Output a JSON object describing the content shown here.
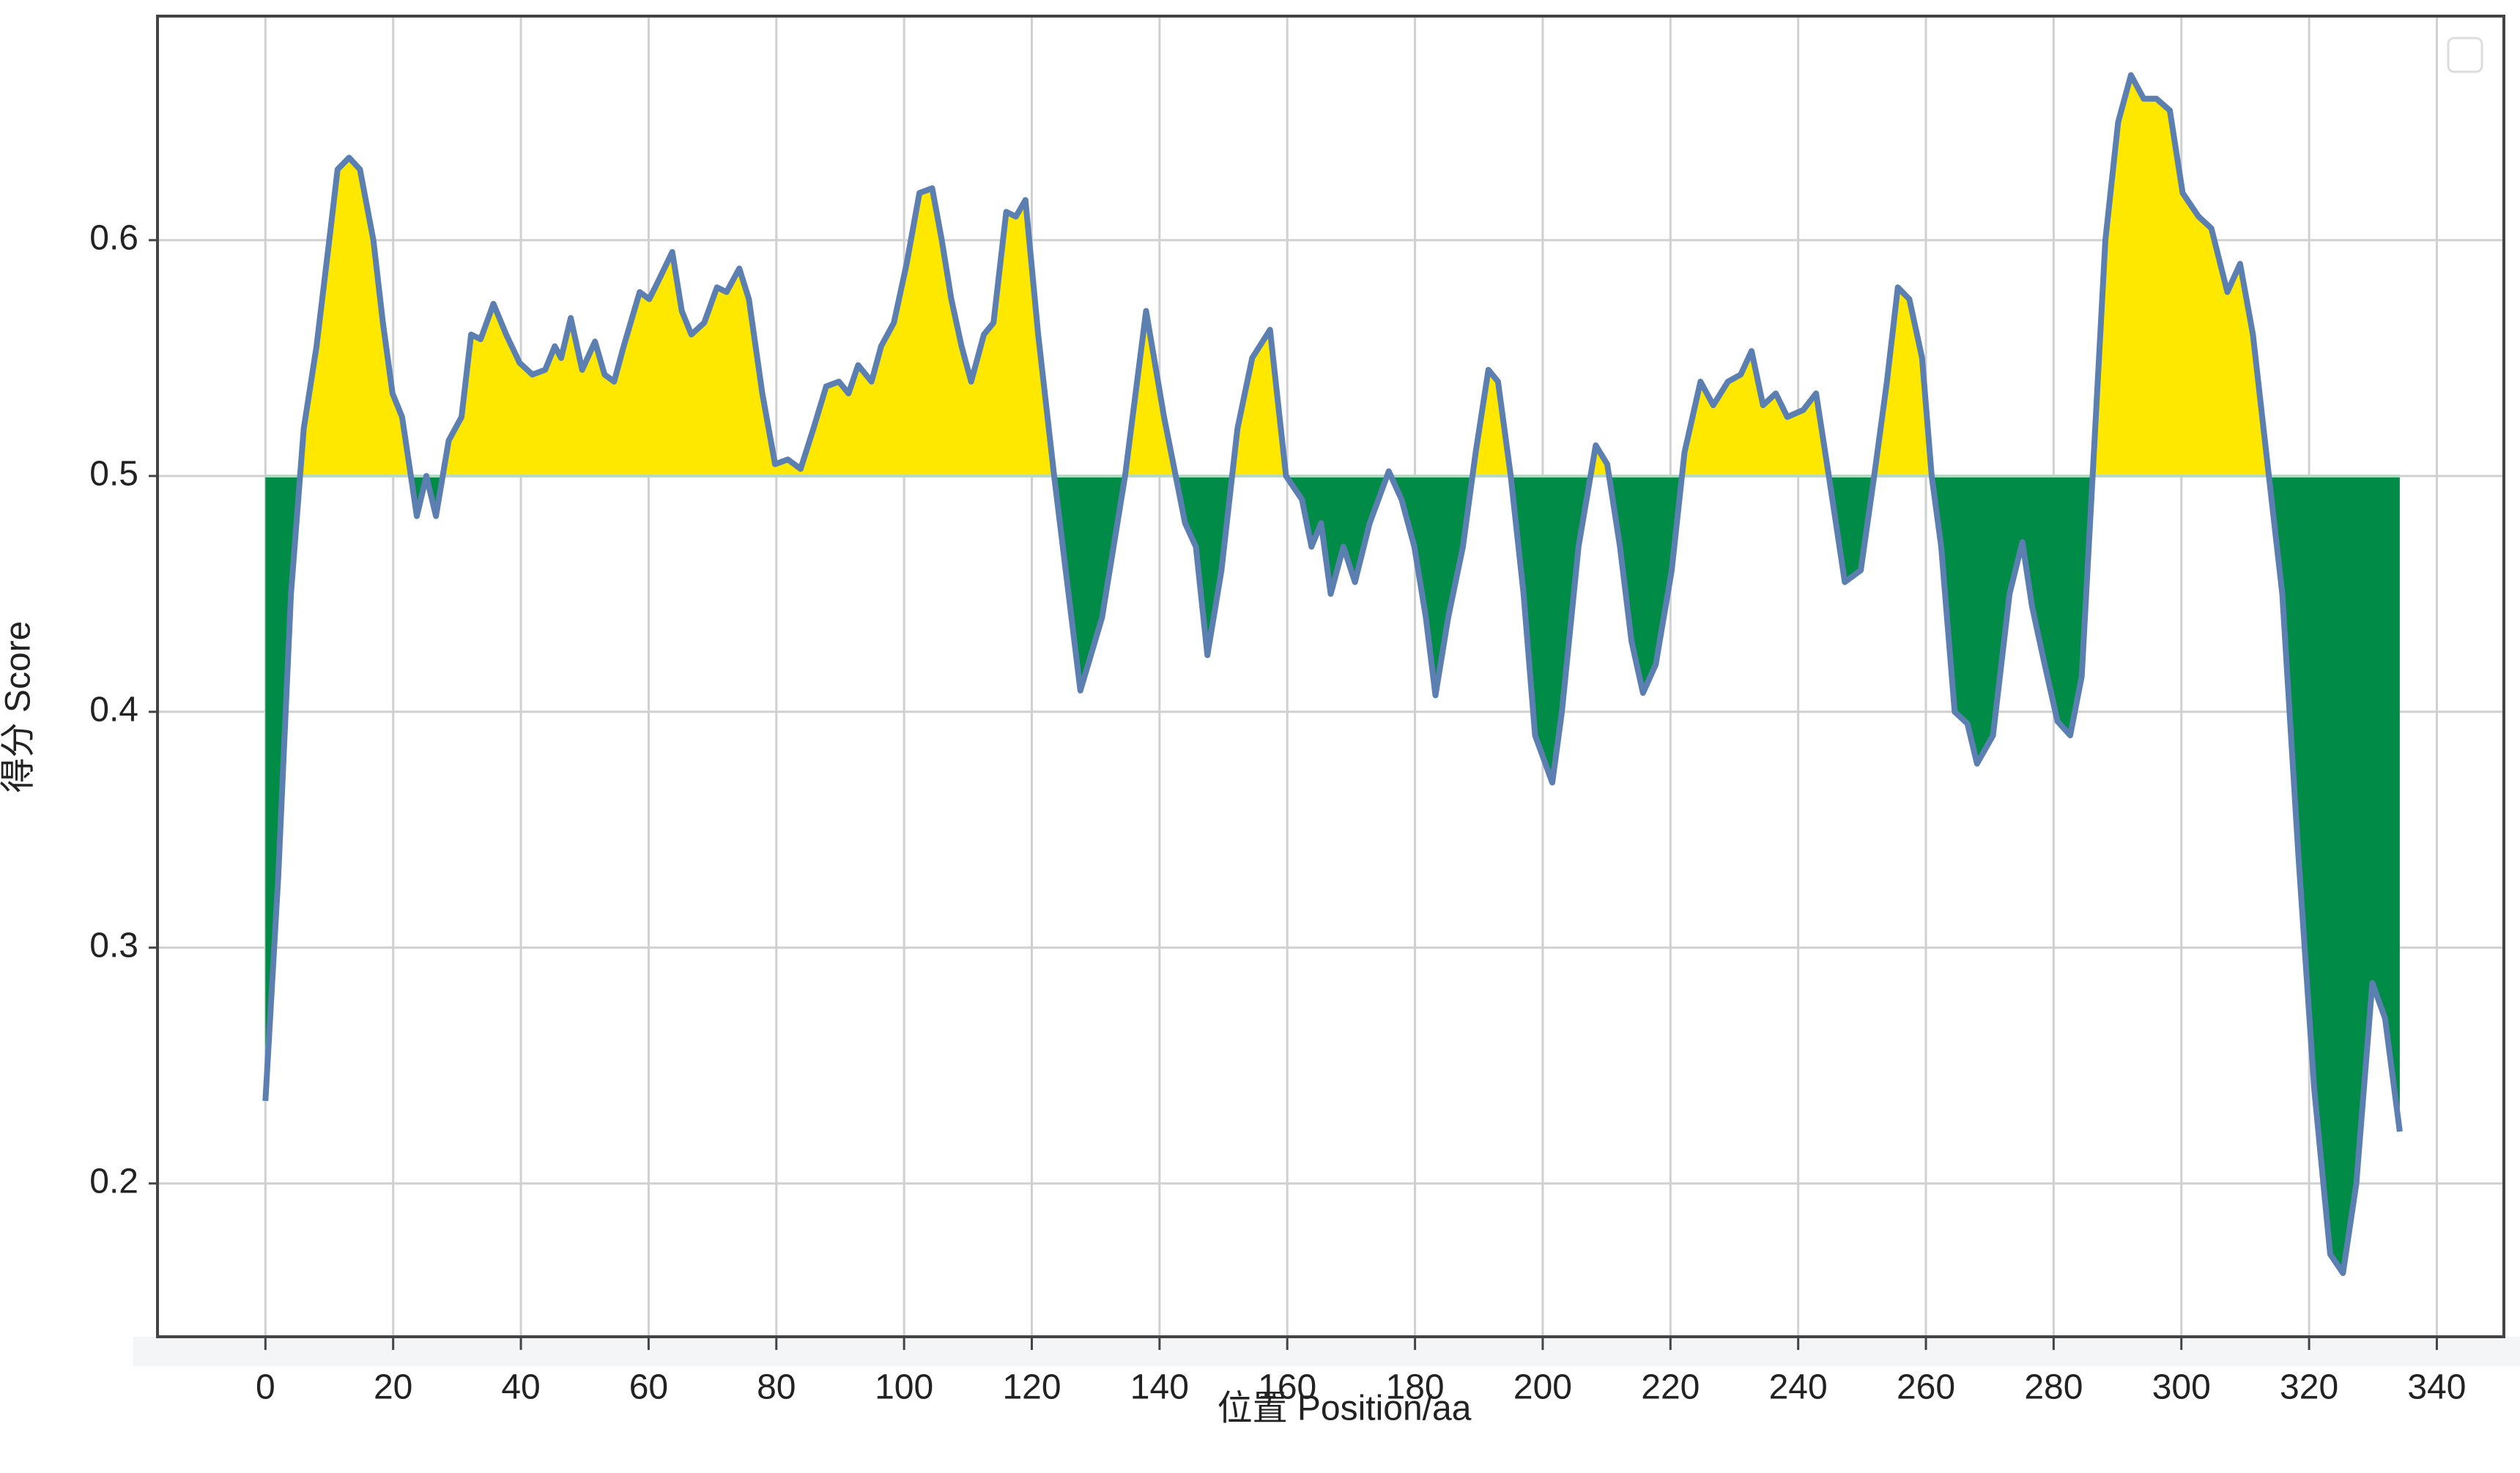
{
  "chart_data": {
    "type": "area-threshold",
    "xlabel": "位置 Position/aa",
    "ylabel": "得分 Score",
    "xlim": [
      -16.9,
      350.5
    ],
    "ylim": [
      0.135,
      0.695
    ],
    "xticks": [
      0,
      20,
      40,
      60,
      80,
      100,
      120,
      140,
      160,
      180,
      200,
      220,
      240,
      260,
      280,
      300,
      320,
      340
    ],
    "yticks": [
      0.2,
      0.3,
      0.4,
      0.5,
      0.6
    ],
    "grid": true,
    "fill_baseline": 0.5,
    "above_color": "#ffe800",
    "below_color": "#008c46",
    "line_color": "#5b7fb0",
    "x": [
      0,
      2,
      4,
      6,
      8,
      10,
      11.3,
      13.1,
      14.8,
      16.9,
      18.4,
      19.9,
      21.4,
      23.7,
      25.2,
      26.7,
      28.7,
      30.7,
      32.2,
      33.7,
      35.7,
      37.7,
      39.8,
      41.8,
      43.8,
      45.3,
      46.3,
      47.8,
      49.6,
      51.6,
      53.1,
      54.6,
      56.1,
      58.6,
      60.1,
      61.4,
      63.7,
      65.2,
      66.7,
      68.7,
      70.7,
      72.2,
      74.2,
      75.7,
      77.8,
      79.8,
      81.8,
      83.8,
      85.8,
      87.8,
      89.8,
      91.3,
      92.8,
      94.9,
      96.4,
      98.4,
      100.4,
      102.4,
      104.4,
      105.9,
      107.4,
      109,
      110.5,
      112.5,
      114,
      116,
      117.5,
      119,
      121,
      123.5,
      127.6,
      131,
      134.6,
      137.9,
      140.7,
      144,
      145.7,
      147.5,
      149.7,
      152.2,
      154.5,
      157.3,
      159.8,
      162.3,
      163.8,
      165.3,
      166.8,
      168.8,
      170.6,
      172.9,
      175.9,
      177.9,
      179.9,
      181.7,
      183.2,
      185.2,
      187.5,
      189.5,
      191.5,
      193,
      195,
      197,
      198.8,
      201.5,
      203,
      205.6,
      208.3,
      210.1,
      212.1,
      213.9,
      215.7,
      217.7,
      220.2,
      222.2,
      224.7,
      226.7,
      229,
      231,
      232.7,
      234.5,
      236.5,
      238.3,
      240.8,
      242.8,
      244.8,
      247.3,
      249.8,
      251.9,
      253.9,
      255.6,
      257.4,
      259.4,
      260.9,
      262.4,
      264.5,
      266.5,
      268,
      270.5,
      273.1,
      275.1,
      276.6,
      278.6,
      280.6,
      282.6,
      284.4,
      286.1,
      288.1,
      290.1,
      292.1,
      294.1,
      296.1,
      298.2,
      300.2,
      302.7,
      304.7,
      307.2,
      309.2,
      311.2,
      313.7,
      315.8,
      318.3,
      320.8,
      323.3,
      325.3,
      327.4,
      329.9,
      331.9,
      334.2
    ],
    "values": [
      0.235,
      0.33,
      0.45,
      0.52,
      0.555,
      0.6,
      0.63,
      0.635,
      0.63,
      0.6,
      0.565,
      0.535,
      0.525,
      0.483,
      0.5,
      0.483,
      0.515,
      0.525,
      0.56,
      0.558,
      0.573,
      0.56,
      0.548,
      0.543,
      0.545,
      0.555,
      0.55,
      0.567,
      0.545,
      0.557,
      0.543,
      0.54,
      0.555,
      0.578,
      0.575,
      0.582,
      0.595,
      0.57,
      0.56,
      0.565,
      0.58,
      0.578,
      0.588,
      0.575,
      0.535,
      0.505,
      0.507,
      0.503,
      0.52,
      0.538,
      0.54,
      0.535,
      0.547,
      0.54,
      0.555,
      0.565,
      0.59,
      0.62,
      0.622,
      0.6,
      0.575,
      0.555,
      0.54,
      0.56,
      0.565,
      0.612,
      0.61,
      0.617,
      0.56,
      0.5,
      0.409,
      0.44,
      0.5,
      0.57,
      0.525,
      0.48,
      0.47,
      0.424,
      0.46,
      0.52,
      0.55,
      0.562,
      0.5,
      0.49,
      0.47,
      0.48,
      0.45,
      0.47,
      0.455,
      0.48,
      0.502,
      0.49,
      0.47,
      0.44,
      0.407,
      0.44,
      0.47,
      0.51,
      0.545,
      0.54,
      0.5,
      0.45,
      0.39,
      0.37,
      0.4,
      0.47,
      0.513,
      0.505,
      0.47,
      0.43,
      0.408,
      0.42,
      0.46,
      0.51,
      0.54,
      0.53,
      0.54,
      0.543,
      0.553,
      0.53,
      0.535,
      0.525,
      0.528,
      0.535,
      0.5,
      0.455,
      0.46,
      0.5,
      0.54,
      0.58,
      0.575,
      0.55,
      0.5,
      0.47,
      0.4,
      0.395,
      0.378,
      0.39,
      0.45,
      0.472,
      0.445,
      0.42,
      0.396,
      0.39,
      0.415,
      0.5,
      0.6,
      0.65,
      0.67,
      0.66,
      0.66,
      0.655,
      0.62,
      0.61,
      0.605,
      0.578,
      0.59,
      0.56,
      0.5,
      0.45,
      0.34,
      0.24,
      0.17,
      0.162,
      0.2,
      0.285,
      0.27,
      0.222
    ]
  }
}
